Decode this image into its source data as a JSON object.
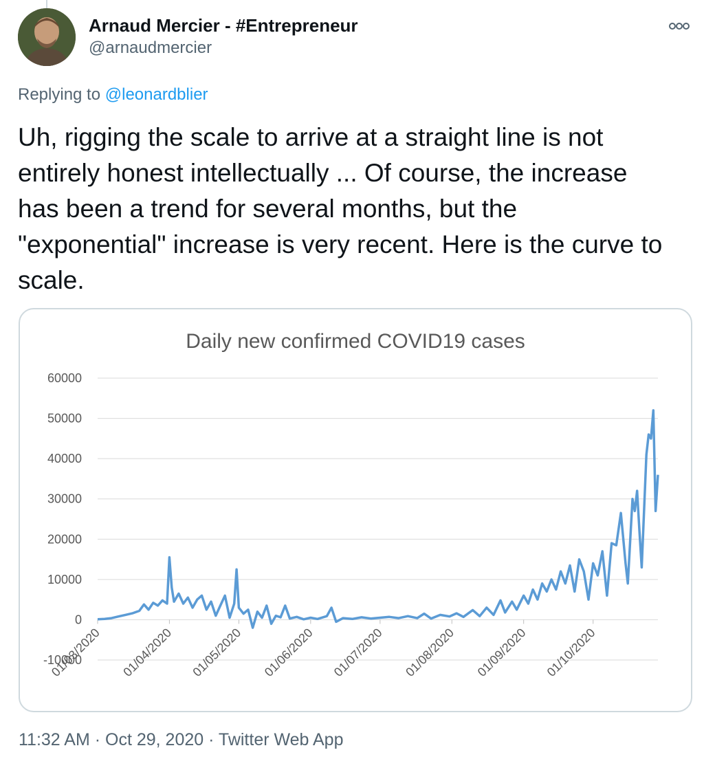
{
  "tweet": {
    "author_name": "Arnaud Mercier - #Entrepreneur",
    "author_handle": "@arnaudmercier",
    "replying_to_prefix": "Replying to ",
    "replying_to_handle": "@leonardblier",
    "text": "Uh, rigging the scale to arrive at a straight line is not\nentirely honest intellectually ... Of course, the increase\nhas been a trend for several months, but the\n\"exponential\" increase is very recent. Here is the curve to\nscale.",
    "time": "11:32 AM",
    "separator": " · ",
    "date": "Oct 29, 2020",
    "source": "Twitter Web App"
  },
  "icons": {
    "more": "more-options-icon",
    "avatar": "profile-avatar"
  },
  "colors": {
    "line": "#5b9bd5",
    "grid": "#d9d9d9",
    "text_secondary": "#536471",
    "link": "#1d9bf0"
  },
  "chart_data": {
    "type": "line",
    "title": "Daily new confirmed COVID19 cases",
    "y_ticks": [
      "60000",
      "50000",
      "40000",
      "30000",
      "20000",
      "10000",
      "0",
      "-10000"
    ],
    "ylim": [
      -10000,
      60000
    ],
    "x_tick_labels": [
      "01/03/2020",
      "01/04/2020",
      "01/05/2020",
      "01/06/2020",
      "01/07/2020",
      "01/08/2020",
      "01/09/2020",
      "01/10/2020"
    ],
    "xlim": [
      "2020-03-01",
      "2020-10-29"
    ],
    "grid": true,
    "series": [
      {
        "color": "#5b9bd5",
        "points": [
          [
            "2020-03-01",
            100
          ],
          [
            "2020-03-04",
            200
          ],
          [
            "2020-03-07",
            400
          ],
          [
            "2020-03-10",
            800
          ],
          [
            "2020-03-13",
            1200
          ],
          [
            "2020-03-16",
            1600
          ],
          [
            "2020-03-19",
            2200
          ],
          [
            "2020-03-21",
            3800
          ],
          [
            "2020-03-23",
            2500
          ],
          [
            "2020-03-25",
            4200
          ],
          [
            "2020-03-27",
            3500
          ],
          [
            "2020-03-29",
            4800
          ],
          [
            "2020-03-31",
            4000
          ],
          [
            "2020-04-01",
            15500
          ],
          [
            "2020-04-02",
            8000
          ],
          [
            "2020-04-03",
            4500
          ],
          [
            "2020-04-05",
            6500
          ],
          [
            "2020-04-07",
            4000
          ],
          [
            "2020-04-09",
            5500
          ],
          [
            "2020-04-11",
            3000
          ],
          [
            "2020-04-13",
            5000
          ],
          [
            "2020-04-15",
            6000
          ],
          [
            "2020-04-17",
            2500
          ],
          [
            "2020-04-19",
            4500
          ],
          [
            "2020-04-21",
            1000
          ],
          [
            "2020-04-23",
            3500
          ],
          [
            "2020-04-25",
            6000
          ],
          [
            "2020-04-27",
            500
          ],
          [
            "2020-04-29",
            4000
          ],
          [
            "2020-04-30",
            12500
          ],
          [
            "2020-05-01",
            3000
          ],
          [
            "2020-05-03",
            1500
          ],
          [
            "2020-05-05",
            2500
          ],
          [
            "2020-05-07",
            -2000
          ],
          [
            "2020-05-09",
            2000
          ],
          [
            "2020-05-11",
            500
          ],
          [
            "2020-05-13",
            3500
          ],
          [
            "2020-05-15",
            -1000
          ],
          [
            "2020-05-17",
            1000
          ],
          [
            "2020-05-19",
            600
          ],
          [
            "2020-05-21",
            3500
          ],
          [
            "2020-05-23",
            300
          ],
          [
            "2020-05-26",
            700
          ],
          [
            "2020-05-29",
            100
          ],
          [
            "2020-06-01",
            500
          ],
          [
            "2020-06-04",
            200
          ],
          [
            "2020-06-08",
            900
          ],
          [
            "2020-06-10",
            3000
          ],
          [
            "2020-06-12",
            -500
          ],
          [
            "2020-06-15",
            400
          ],
          [
            "2020-06-19",
            200
          ],
          [
            "2020-06-23",
            600
          ],
          [
            "2020-06-27",
            300
          ],
          [
            "2020-07-01",
            500
          ],
          [
            "2020-07-05",
            700
          ],
          [
            "2020-07-09",
            400
          ],
          [
            "2020-07-13",
            900
          ],
          [
            "2020-07-17",
            400
          ],
          [
            "2020-07-20",
            1500
          ],
          [
            "2020-07-23",
            300
          ],
          [
            "2020-07-27",
            1200
          ],
          [
            "2020-07-31",
            800
          ],
          [
            "2020-08-03",
            1600
          ],
          [
            "2020-08-06",
            700
          ],
          [
            "2020-08-10",
            2400
          ],
          [
            "2020-08-13",
            900
          ],
          [
            "2020-08-16",
            3000
          ],
          [
            "2020-08-19",
            1200
          ],
          [
            "2020-08-22",
            4800
          ],
          [
            "2020-08-24",
            1800
          ],
          [
            "2020-08-27",
            4500
          ],
          [
            "2020-08-29",
            2500
          ],
          [
            "2020-09-01",
            6000
          ],
          [
            "2020-09-03",
            4000
          ],
          [
            "2020-09-05",
            7500
          ],
          [
            "2020-09-07",
            5000
          ],
          [
            "2020-09-09",
            9000
          ],
          [
            "2020-09-11",
            7000
          ],
          [
            "2020-09-13",
            10000
          ],
          [
            "2020-09-15",
            7500
          ],
          [
            "2020-09-17",
            12000
          ],
          [
            "2020-09-19",
            9000
          ],
          [
            "2020-09-21",
            13500
          ],
          [
            "2020-09-23",
            7000
          ],
          [
            "2020-09-25",
            15000
          ],
          [
            "2020-09-27",
            12000
          ],
          [
            "2020-09-29",
            5000
          ],
          [
            "2020-10-01",
            14000
          ],
          [
            "2020-10-03",
            11000
          ],
          [
            "2020-10-05",
            17000
          ],
          [
            "2020-10-07",
            6000
          ],
          [
            "2020-10-09",
            19000
          ],
          [
            "2020-10-11",
            18500
          ],
          [
            "2020-10-13",
            26500
          ],
          [
            "2020-10-15",
            14000
          ],
          [
            "2020-10-16",
            9000
          ],
          [
            "2020-10-18",
            30000
          ],
          [
            "2020-10-19",
            27000
          ],
          [
            "2020-10-20",
            32000
          ],
          [
            "2020-10-21",
            22000
          ],
          [
            "2020-10-22",
            13000
          ],
          [
            "2020-10-24",
            41000
          ],
          [
            "2020-10-25",
            46000
          ],
          [
            "2020-10-26",
            45000
          ],
          [
            "2020-10-27",
            52000
          ],
          [
            "2020-10-28",
            27000
          ],
          [
            "2020-10-29",
            36000
          ]
        ]
      }
    ]
  }
}
